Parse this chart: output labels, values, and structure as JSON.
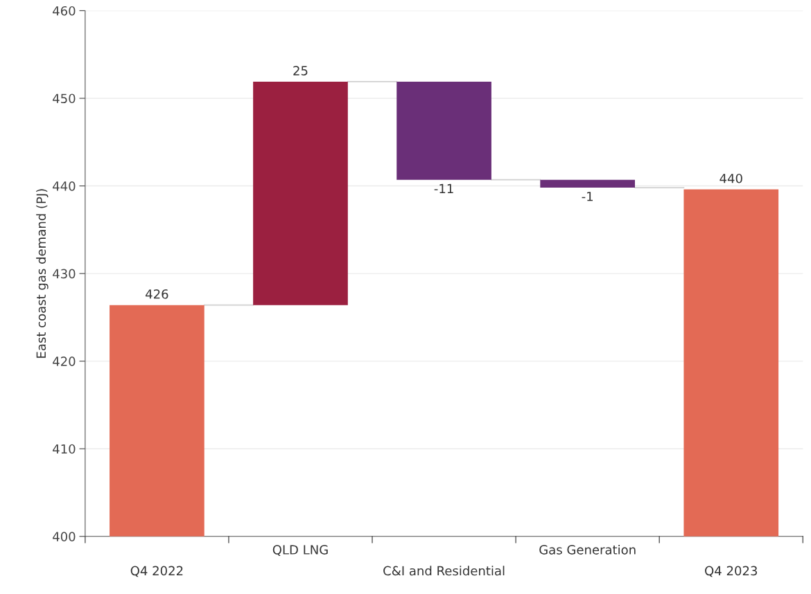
{
  "chart_data": {
    "type": "bar",
    "ylabel": "East coast gas demand (PJ)",
    "categories": [
      "Q4 2022",
      "QLD LNG",
      "C&I and Residential",
      "Gas Generation",
      "Q4 2023"
    ],
    "values": [
      426.4,
      25.5,
      -11.2,
      -0.9,
      439.6
    ],
    "base": [
      null,
      426.4,
      451.9,
      440.7,
      null
    ],
    "value_labels": [
      "426",
      "25",
      "-11",
      "-1",
      "440"
    ],
    "colors": [
      "#e36a55",
      "#9b2040",
      "#6a2f78",
      "#6a2f78",
      "#e36a55"
    ],
    "ylim": [
      400,
      460
    ],
    "yticks": [
      400,
      410,
      420,
      430,
      440,
      450,
      460
    ],
    "grid": "y"
  }
}
